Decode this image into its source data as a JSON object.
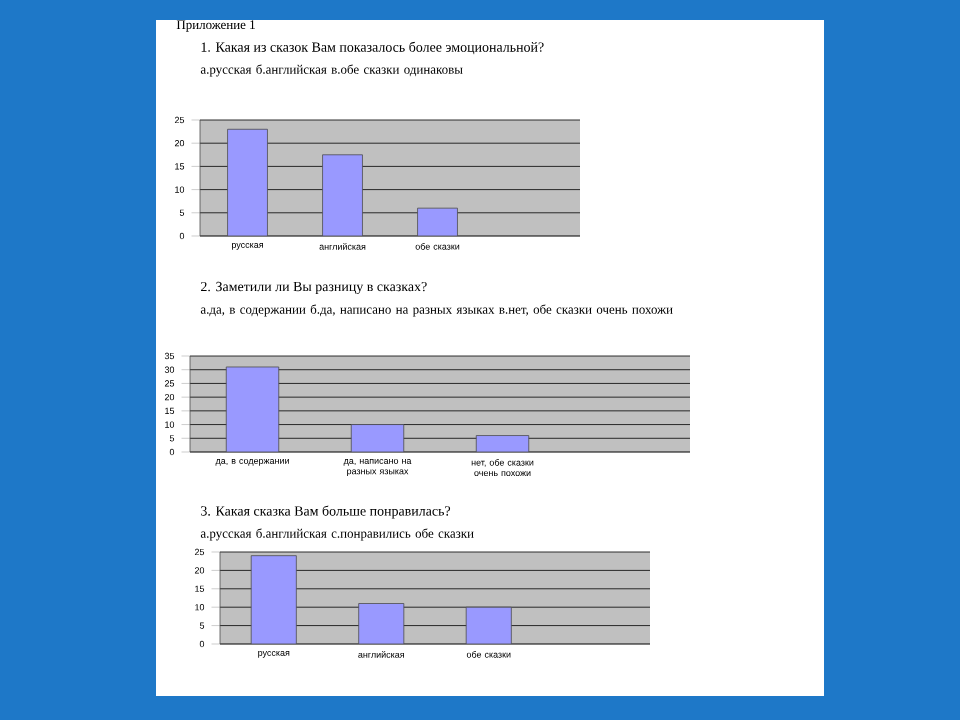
{
  "chart_data": [
    {
      "type": "bar",
      "title": "1. Какая из сказок Вам показалось более эмоциональной?",
      "subtitle": "а.русская     б.английская     в.обе сказки одинаковы",
      "annotations": [
        "Приложение 1"
      ],
      "categories": [
        "русская",
        "английская",
        "обе сказки"
      ],
      "values": [
        23,
        17.5,
        6
      ],
      "color": "#9999ff",
      "ylim": [
        0,
        25
      ],
      "yticks": [
        0,
        5,
        10,
        15,
        20,
        25
      ],
      "grid": "y"
    },
    {
      "type": "bar",
      "title": "2. Заметили ли Вы разницу в сказках?",
      "subtitle": "а.да, в содержании     б.да, написано на разных языках     в.нет, обе сказки очень похожи",
      "categories": [
        "да, в содержании",
        "да, написано на разных языках",
        "нет, обе сказки очень похожи"
      ],
      "values": [
        31,
        10,
        6
      ],
      "color": "#9999ff",
      "ylim": [
        0,
        35
      ],
      "yticks": [
        0,
        5,
        10,
        15,
        20,
        25,
        30,
        35
      ],
      "grid": "y"
    },
    {
      "type": "bar",
      "title": "3. Какая сказка Вам больше понравилась?",
      "subtitle": "а.русская     б.английская     с.понравились обе сказки",
      "categories": [
        "русская",
        "английская",
        "обе сказки"
      ],
      "values": [
        24,
        11,
        10
      ],
      "color": "#9999ff",
      "ylim": [
        0,
        25
      ],
      "yticks": [
        0,
        5,
        10,
        15,
        20,
        25
      ],
      "grid": "y"
    }
  ]
}
